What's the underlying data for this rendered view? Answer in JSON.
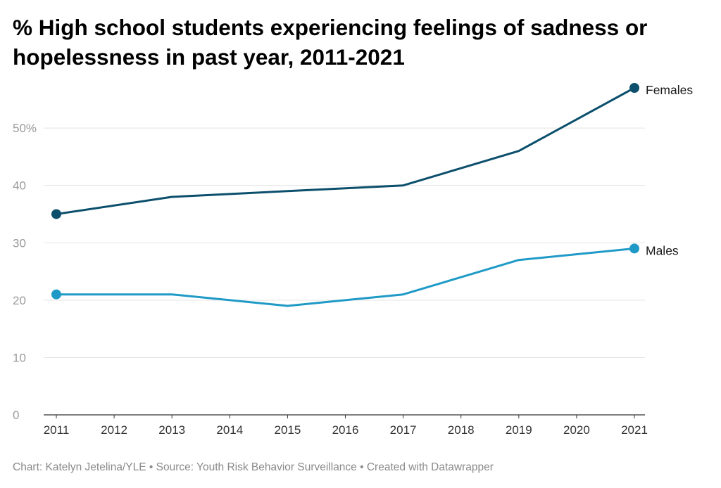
{
  "title": "% High school students experiencing feelings of sadness or hopelessness in past year, 2011-2021",
  "footer": {
    "parts": [
      "Chart: Katelyn Jetelina/YLE",
      "Source: Youth Risk Behavior Surveillance",
      "Created with Datawrapper"
    ]
  },
  "chart_data": {
    "type": "line",
    "title": "% High school students experiencing feelings of sadness or hopelessness in past year, 2011-2021",
    "x": [
      2011,
      2013,
      2015,
      2017,
      2019,
      2021
    ],
    "x_ticks": [
      "2011",
      "2012",
      "2013",
      "2014",
      "2015",
      "2016",
      "2017",
      "2018",
      "2019",
      "2020",
      "2021"
    ],
    "y_ticks": [
      "0",
      "10",
      "20",
      "30",
      "40",
      "50%"
    ],
    "y_tick_values": [
      0,
      10,
      20,
      30,
      40,
      50
    ],
    "ylim": [
      0,
      57
    ],
    "xlim": [
      2011,
      2021
    ],
    "grid": true,
    "legend": "direct labels at line ends",
    "series": [
      {
        "name": "Females",
        "color": "#0b4f6c",
        "values": [
          35,
          38,
          39,
          40,
          46,
          57
        ]
      },
      {
        "name": "Males",
        "color": "#1f9ac7",
        "values": [
          21,
          21,
          19,
          21,
          27,
          29
        ]
      }
    ]
  }
}
